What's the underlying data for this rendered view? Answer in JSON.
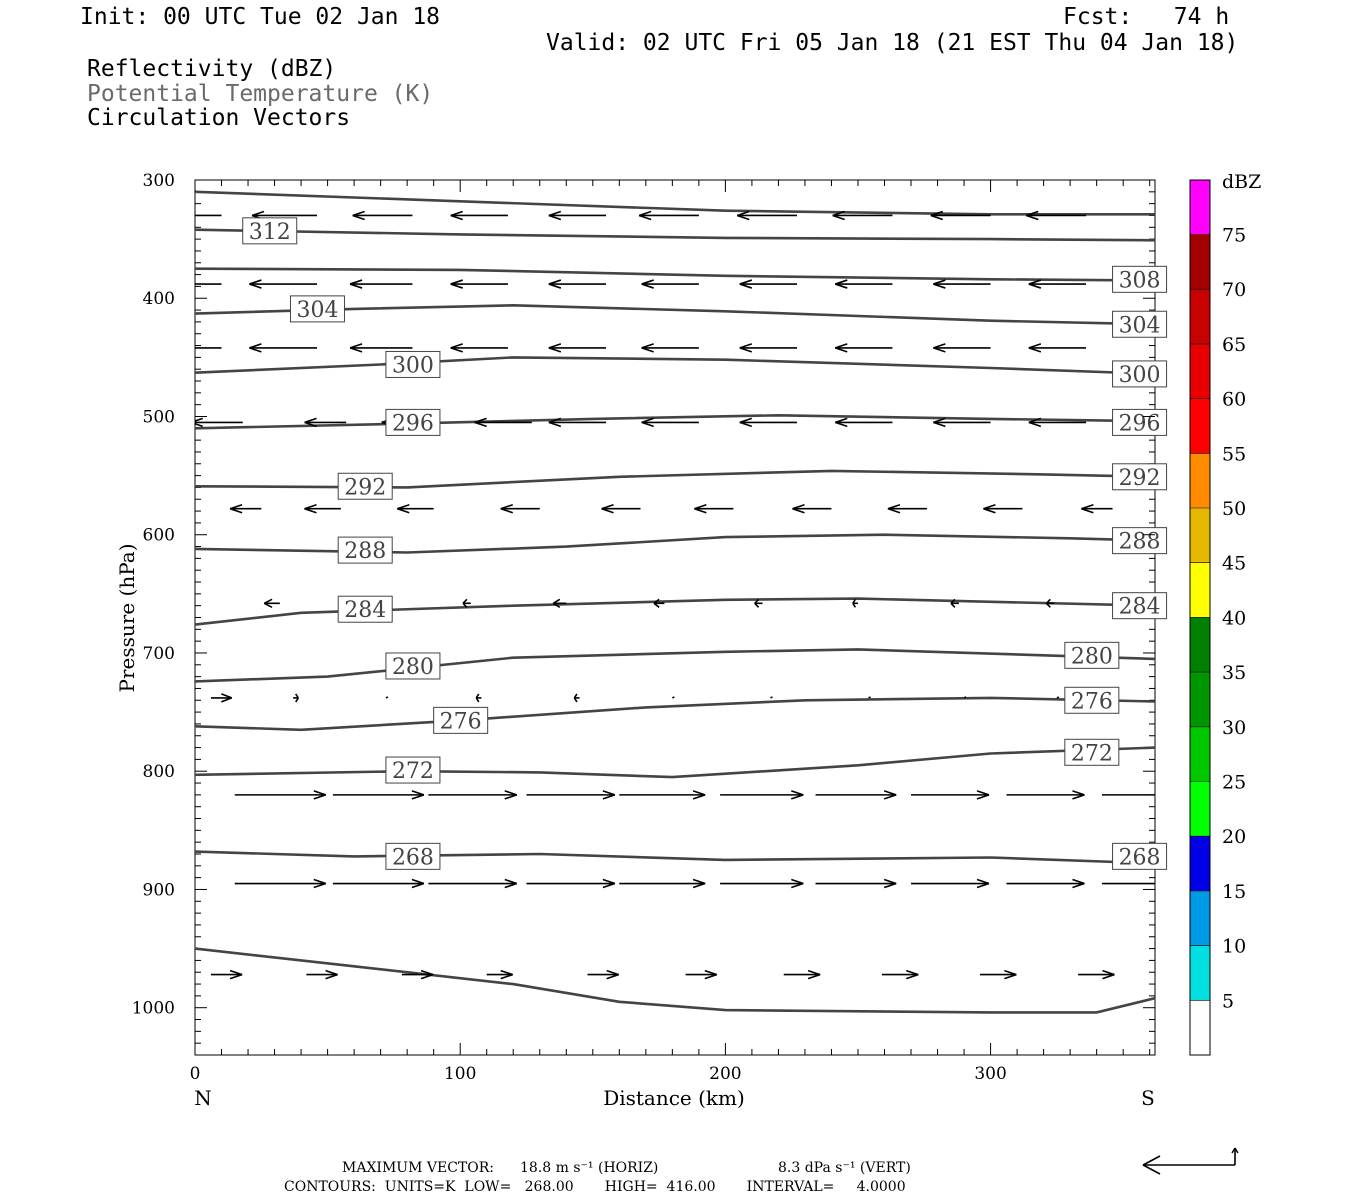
{
  "header": {
    "init": "Init: 00 UTC Tue 02 Jan 18",
    "fcst": "Fcst:   74 h",
    "valid": "Valid: 02 UTC Fri 05 Jan 18 (21 EST Thu 04 Jan 18)",
    "fields": [
      "Reflectivity (dBZ)",
      "Potential Temperature (K)",
      "Circulation Vectors"
    ]
  },
  "footer": {
    "max_vector_prefix": "MAXIMUM VECTOR:",
    "max_vector_horiz": "18.8 m s⁻¹ (HORIZ)",
    "max_vector_vert": "8.3 dPa s⁻¹ (VERT)",
    "contours": "CONTOURS:  UNITS=K  LOW=   268.00       HIGH=  416.00       INTERVAL=     4.0000"
  },
  "colors": {
    "contour": "#444444",
    "colorbar": [
      "#ffffff",
      "#00e0e0",
      "#0099e6",
      "#0000e6",
      "#00ff00",
      "#00c800",
      "#009600",
      "#008000",
      "#ffff00",
      "#e6b800",
      "#ff8c00",
      "#ff0000",
      "#e60000",
      "#c80000",
      "#a50000",
      "#ff00ff",
      "#9b59c8",
      "#ffffff"
    ]
  },
  "chart_data": {
    "type": "cross-section",
    "xlabel": "Distance (km)",
    "ylabel": "Pressure (hPa)",
    "xlim": [
      0,
      362
    ],
    "ylim": [
      1040,
      300
    ],
    "xticks": [
      0,
      100,
      200,
      300
    ],
    "yticks": [
      300,
      400,
      500,
      600,
      700,
      800,
      900,
      1000
    ],
    "x_end_labels": [
      "N",
      "S"
    ],
    "colorbar": {
      "unit": "dBZ",
      "labels": [
        5,
        10,
        15,
        20,
        25,
        30,
        35,
        40,
        45,
        50,
        55,
        60,
        65,
        70,
        75
      ]
    },
    "contour_series": [
      {
        "name": "312",
        "labels": [
          [
            18,
            343
          ]
        ],
        "points": [
          [
            0,
            310
          ],
          [
            100,
            318
          ],
          [
            200,
            326
          ],
          [
            300,
            329
          ],
          [
            362,
            329
          ]
        ]
      },
      {
        "name": "",
        "labels": [],
        "points": [
          [
            0,
            342
          ],
          [
            100,
            346
          ],
          [
            200,
            349
          ],
          [
            300,
            350
          ],
          [
            362,
            351
          ]
        ]
      },
      {
        "name": "308",
        "labels": [
          [
            346,
            384
          ]
        ],
        "points": [
          [
            0,
            375
          ],
          [
            100,
            376
          ],
          [
            200,
            381
          ],
          [
            300,
            384
          ],
          [
            362,
            385
          ]
        ]
      },
      {
        "name": "304",
        "labels": [
          [
            36,
            409
          ],
          [
            346,
            422
          ]
        ],
        "points": [
          [
            0,
            413
          ],
          [
            60,
            409
          ],
          [
            120,
            406
          ],
          [
            200,
            411
          ],
          [
            300,
            419
          ],
          [
            362,
            422
          ]
        ]
      },
      {
        "name": "300",
        "labels": [
          [
            72,
            456
          ],
          [
            346,
            464
          ]
        ],
        "points": [
          [
            0,
            463
          ],
          [
            70,
            456
          ],
          [
            120,
            450
          ],
          [
            200,
            452
          ],
          [
            300,
            459
          ],
          [
            362,
            464
          ]
        ]
      },
      {
        "name": "296",
        "labels": [
          [
            72,
            505
          ],
          [
            346,
            505
          ]
        ],
        "points": [
          [
            0,
            510
          ],
          [
            80,
            506
          ],
          [
            150,
            502
          ],
          [
            220,
            499
          ],
          [
            300,
            502
          ],
          [
            362,
            504
          ]
        ]
      },
      {
        "name": "292",
        "labels": [
          [
            54,
            559
          ],
          [
            346,
            551
          ]
        ],
        "points": [
          [
            0,
            559
          ],
          [
            80,
            560
          ],
          [
            160,
            551
          ],
          [
            240,
            546
          ],
          [
            320,
            549
          ],
          [
            362,
            551
          ]
        ]
      },
      {
        "name": "288",
        "labels": [
          [
            54,
            613
          ],
          [
            346,
            605
          ]
        ],
        "points": [
          [
            0,
            612
          ],
          [
            80,
            615
          ],
          [
            140,
            610
          ],
          [
            200,
            602
          ],
          [
            260,
            600
          ],
          [
            330,
            603
          ],
          [
            362,
            605
          ]
        ]
      },
      {
        "name": "284",
        "labels": [
          [
            54,
            663
          ],
          [
            346,
            660
          ]
        ],
        "points": [
          [
            0,
            676
          ],
          [
            40,
            666
          ],
          [
            120,
            660
          ],
          [
            200,
            655
          ],
          [
            250,
            654
          ],
          [
            362,
            660
          ]
        ]
      },
      {
        "name": "280",
        "labels": [
          [
            72,
            711
          ],
          [
            328,
            702
          ]
        ],
        "points": [
          [
            0,
            724
          ],
          [
            50,
            720
          ],
          [
            120,
            704
          ],
          [
            200,
            699
          ],
          [
            250,
            697
          ],
          [
            362,
            705
          ]
        ]
      },
      {
        "name": "276",
        "labels": [
          [
            90,
            757
          ],
          [
            328,
            740
          ]
        ],
        "points": [
          [
            0,
            762
          ],
          [
            40,
            765
          ],
          [
            100,
            757
          ],
          [
            170,
            746
          ],
          [
            230,
            740
          ],
          [
            300,
            738
          ],
          [
            362,
            741
          ]
        ]
      },
      {
        "name": "272",
        "labels": [
          [
            72,
            799
          ],
          [
            328,
            784
          ]
        ],
        "points": [
          [
            0,
            803
          ],
          [
            80,
            800
          ],
          [
            130,
            801
          ],
          [
            180,
            805
          ],
          [
            250,
            795
          ],
          [
            300,
            785
          ],
          [
            362,
            780
          ]
        ]
      },
      {
        "name": "268",
        "labels": [
          [
            72,
            872
          ],
          [
            346,
            872
          ]
        ],
        "points": [
          [
            0,
            868
          ],
          [
            60,
            872
          ],
          [
            130,
            870
          ],
          [
            200,
            875
          ],
          [
            300,
            873
          ],
          [
            362,
            878
          ]
        ]
      },
      {
        "name": "",
        "labels": [],
        "points": [
          [
            0,
            950
          ],
          [
            60,
            965
          ],
          [
            120,
            980
          ],
          [
            160,
            995
          ],
          [
            200,
            1002
          ],
          [
            300,
            1004
          ],
          [
            340,
            1004
          ],
          [
            362,
            992
          ]
        ]
      }
    ],
    "vectors": [
      {
        "p": 330,
        "x": [
          10,
          46,
          82,
          118,
          155,
          190,
          227,
          263,
          300,
          336
        ],
        "u": [
          -28,
          -25,
          -23,
          -22,
          -22,
          -23,
          -23,
          -23,
          -23,
          -23
        ],
        "v": [
          0,
          0,
          0,
          0,
          0,
          0,
          0,
          0,
          0,
          0
        ]
      },
      {
        "p": 388,
        "x": [
          10,
          46,
          82,
          118,
          155,
          190,
          227,
          263,
          300,
          336
        ],
        "u": [
          -28,
          -26,
          -24,
          -22,
          -22,
          -22,
          -22,
          -22,
          -22,
          -22
        ],
        "v": [
          0,
          0,
          0,
          0,
          0,
          0,
          0,
          0,
          0,
          0
        ]
      },
      {
        "p": 442,
        "x": [
          10,
          46,
          82,
          118,
          155,
          190,
          227,
          263,
          300,
          336
        ],
        "u": [
          -28,
          -26,
          -24,
          -22,
          -22,
          -22,
          -22,
          -22,
          -22,
          -22
        ],
        "v": [
          0,
          0,
          0,
          0,
          0,
          0,
          0,
          0,
          0,
          0
        ]
      },
      {
        "p": 505,
        "x": [
          18,
          57,
          90,
          127,
          155,
          190,
          227,
          263,
          300,
          336
        ],
        "u": [
          -20,
          -16,
          -20,
          -22,
          -22,
          -22,
          -22,
          -22,
          -22,
          -22
        ],
        "v": [
          0,
          0,
          0,
          0,
          0,
          0,
          0,
          0,
          0,
          0
        ]
      },
      {
        "p": 578,
        "x": [
          25,
          55,
          90,
          130,
          168,
          203,
          240,
          276,
          312,
          346
        ],
        "u": [
          -12,
          -14,
          -14,
          -15,
          -15,
          -15,
          -15,
          -15,
          -15,
          -12
        ],
        "v": [
          0,
          0,
          0,
          0,
          0,
          0,
          0,
          0,
          0,
          0
        ]
      },
      {
        "p": 658,
        "x": [
          32,
          65,
          104,
          140,
          177,
          214,
          250,
          288,
          324,
          356
        ],
        "u": [
          -6,
          -7,
          -3,
          -5,
          -4,
          -3,
          -2,
          -3,
          -3,
          -3
        ],
        "v": [
          0,
          0,
          0,
          0,
          0,
          0,
          0,
          0,
          0,
          0
        ]
      },
      {
        "p": 738,
        "x": [
          6,
          37,
          72,
          108,
          145,
          180,
          217,
          254,
          290,
          325
        ],
        "u": [
          8,
          2,
          -1,
          -2,
          -2,
          0,
          0,
          0,
          0,
          0
        ],
        "v": [
          0,
          0,
          0,
          0,
          0,
          0,
          0,
          0,
          0,
          0
        ]
      },
      {
        "p": 820,
        "x": [
          15,
          52,
          88,
          125,
          160,
          198,
          234,
          270,
          306,
          342
        ],
        "u": [
          35,
          35,
          34,
          34,
          33,
          32,
          31,
          30,
          30,
          28
        ],
        "v": [
          0,
          0,
          0,
          0,
          0,
          0,
          0,
          0,
          0,
          0
        ]
      },
      {
        "p": 895,
        "x": [
          15,
          52,
          88,
          125,
          160,
          198,
          234,
          270,
          306,
          342
        ],
        "u": [
          35,
          35,
          34,
          34,
          33,
          32,
          31,
          30,
          30,
          28
        ],
        "v": [
          0,
          0,
          0,
          0,
          0,
          0,
          0,
          0,
          0,
          0
        ]
      },
      {
        "p": 972,
        "x": [
          6,
          42,
          78,
          110,
          148,
          185,
          222,
          259,
          296,
          333
        ],
        "u": [
          12,
          12,
          12,
          10,
          12,
          12,
          14,
          14,
          14,
          14
        ],
        "v": [
          0,
          0,
          0,
          0,
          0,
          0,
          0,
          0,
          0,
          0
        ]
      }
    ]
  }
}
